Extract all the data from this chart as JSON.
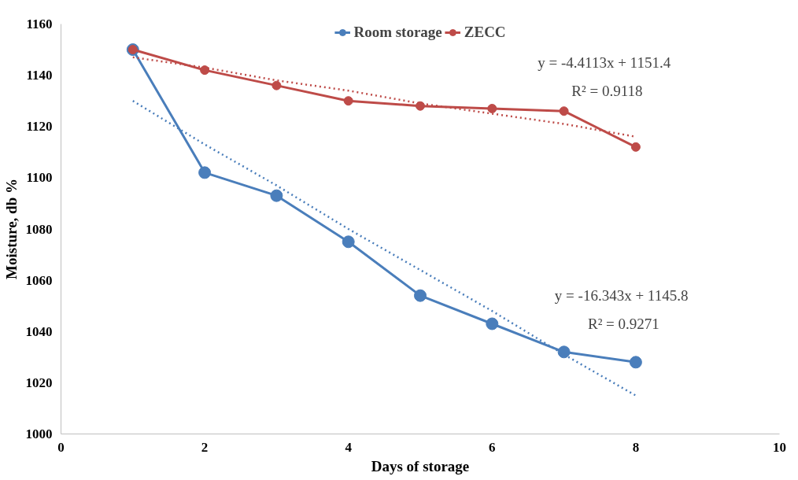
{
  "chart_data": {
    "type": "line",
    "xlabel": "Days of storage",
    "ylabel": "Moisture, db %",
    "x": [
      1,
      2,
      3,
      4,
      5,
      6,
      7,
      8
    ],
    "series": [
      {
        "name": "Room storage",
        "color": "#4a7ebb",
        "values": [
          1150,
          1102,
          1093,
          1075,
          1054,
          1043,
          1032,
          1028
        ],
        "marker": "circle",
        "line_style": "solid"
      },
      {
        "name": "ZECC",
        "color": "#be4b48",
        "values": [
          1150,
          1142,
          1136,
          1130,
          1128,
          1127,
          1126,
          1112
        ],
        "marker": "circle",
        "line_style": "solid"
      },
      {
        "type": "line",
        "color": "#4a7ebb",
        "values": [
          1130,
          1113,
          1097,
          1080,
          1064,
          1048,
          1031,
          1015
        ],
        "marker": "none",
        "line_style": "dotted"
      },
      {
        "type": "line",
        "color": "#be4b48",
        "values": [
          1147,
          1143,
          1138,
          1134,
          1129,
          1125,
          1121,
          1116
        ],
        "marker": "none",
        "line_style": "dotted"
      }
    ],
    "xlim": [
      0,
      10
    ],
    "xticks": [
      0,
      2,
      4,
      6,
      8,
      10
    ],
    "ylim": [
      1000,
      1160
    ],
    "yticks": [
      1000,
      1020,
      1040,
      1060,
      1080,
      1100,
      1120,
      1140,
      1160
    ],
    "grid": false,
    "legend": "top",
    "annotations": [
      "y = -4.4113x + 1151.4",
      "R² = 0.9118",
      "y = -16.343x + 1145.8",
      "R² = 0.9271"
    ]
  }
}
